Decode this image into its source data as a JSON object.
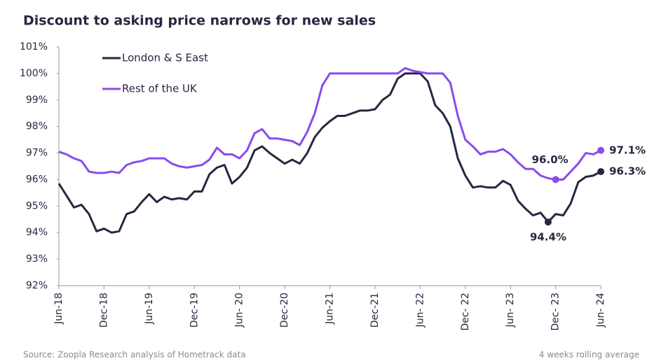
{
  "chart_data": {
    "type": "line",
    "title": "Discount to asking price narrows for new sales",
    "source": "Source: Zoopla Research analysis of Hometrack data",
    "note": "4 weeks rolling average",
    "legend": "upper left",
    "categories": [
      "Jun-18",
      null,
      null,
      null,
      null,
      null,
      "Dec-18",
      null,
      null,
      null,
      null,
      null,
      "Jun-19",
      null,
      null,
      null,
      null,
      null,
      "Dec-19",
      null,
      null,
      null,
      null,
      null,
      "Jun- 20",
      null,
      null,
      null,
      null,
      null,
      "Dec-20",
      null,
      null,
      null,
      null,
      null,
      "Jun-21",
      null,
      null,
      null,
      null,
      null,
      "Dec-21",
      null,
      null,
      null,
      null,
      null,
      "Jun- 22",
      null,
      null,
      null,
      null,
      null,
      "Dec- 22",
      null,
      null,
      null,
      null,
      null,
      "Jun- 23",
      null,
      null,
      null,
      null,
      null,
      "Dec- 23",
      null,
      null,
      null,
      null,
      null,
      "Jun- 24"
    ],
    "ylim": [
      92,
      101
    ],
    "yticks": [
      {
        "value": 92,
        "label": "92%"
      },
      {
        "value": 93,
        "label": "93%"
      },
      {
        "value": 94,
        "label": "94%"
      },
      {
        "value": 95,
        "label": "95%"
      },
      {
        "value": 96,
        "label": "96%"
      },
      {
        "value": 97,
        "label": "97%"
      },
      {
        "value": 98,
        "label": "98%"
      },
      {
        "value": 99,
        "label": "99%"
      },
      {
        "value": 100,
        "label": "100%"
      },
      {
        "value": 101,
        "label": "101%"
      }
    ],
    "series": [
      {
        "name": "London & S East",
        "color": "#2a2640",
        "values": [
          95.85,
          95.4,
          94.95,
          95.05,
          94.7,
          94.05,
          94.15,
          94.0,
          94.05,
          94.7,
          94.8,
          95.15,
          95.45,
          95.15,
          95.35,
          95.25,
          95.3,
          95.25,
          95.55,
          95.55,
          96.2,
          96.45,
          96.55,
          95.85,
          96.1,
          96.45,
          97.1,
          97.25,
          97.0,
          96.8,
          96.6,
          96.75,
          96.6,
          97.0,
          97.6,
          97.95,
          98.2,
          98.4,
          98.4,
          98.5,
          98.6,
          98.6,
          98.65,
          99.0,
          99.2,
          99.8,
          100.0,
          100.0,
          100.0,
          99.7,
          98.8,
          98.5,
          98.0,
          96.8,
          96.15,
          95.7,
          95.75,
          95.7,
          95.7,
          95.95,
          95.8,
          95.2,
          94.9,
          94.65,
          94.75,
          94.4,
          94.7,
          94.65,
          95.1,
          95.9,
          96.1,
          96.15,
          96.3
        ],
        "value_labels": [
          null,
          null,
          null,
          null,
          null,
          null,
          null,
          null,
          null,
          null,
          null,
          null,
          null,
          null,
          null,
          null,
          null,
          null,
          null,
          null,
          null,
          null,
          null,
          null,
          null,
          null,
          null,
          null,
          null,
          null,
          null,
          null,
          null,
          null,
          null,
          null,
          null,
          null,
          null,
          null,
          null,
          null,
          null,
          null,
          null,
          null,
          null,
          null,
          null,
          null,
          null,
          null,
          null,
          null,
          null,
          null,
          null,
          null,
          null,
          null,
          null,
          null,
          null,
          null,
          null,
          "94.4%",
          null,
          null,
          null,
          null,
          null,
          null,
          "96.3%"
        ]
      },
      {
        "name": "Rest of the UK",
        "color": "#8a4bef",
        "values": [
          97.05,
          96.95,
          96.8,
          96.7,
          96.3,
          96.25,
          96.25,
          96.3,
          96.25,
          96.55,
          96.65,
          96.7,
          96.8,
          96.8,
          96.8,
          96.6,
          96.5,
          96.45,
          96.5,
          96.55,
          96.75,
          97.2,
          96.95,
          96.95,
          96.8,
          97.1,
          97.75,
          97.9,
          97.55,
          97.55,
          97.5,
          97.45,
          97.3,
          97.8,
          98.5,
          99.55,
          100.0,
          100.0,
          100.0,
          100.0,
          100.0,
          100.0,
          100.0,
          100.0,
          100.0,
          100.0,
          100.2,
          100.1,
          100.05,
          100.0,
          100.0,
          100.0,
          99.65,
          98.4,
          97.5,
          97.25,
          96.95,
          97.05,
          97.05,
          97.15,
          96.95,
          96.65,
          96.4,
          96.4,
          96.15,
          96.05,
          96.0,
          96.0,
          96.3,
          96.6,
          97.0,
          96.95,
          97.1
        ],
        "value_labels": [
          null,
          null,
          null,
          null,
          null,
          null,
          null,
          null,
          null,
          null,
          null,
          null,
          null,
          null,
          null,
          null,
          null,
          null,
          null,
          null,
          null,
          null,
          null,
          null,
          null,
          null,
          null,
          null,
          null,
          null,
          null,
          null,
          null,
          null,
          null,
          null,
          null,
          null,
          null,
          null,
          null,
          null,
          null,
          null,
          null,
          null,
          null,
          null,
          null,
          null,
          null,
          null,
          null,
          null,
          null,
          null,
          null,
          null,
          null,
          null,
          null,
          null,
          null,
          null,
          null,
          null,
          "96.0%",
          null,
          null,
          null,
          null,
          null,
          "97.1%"
        ]
      }
    ]
  }
}
